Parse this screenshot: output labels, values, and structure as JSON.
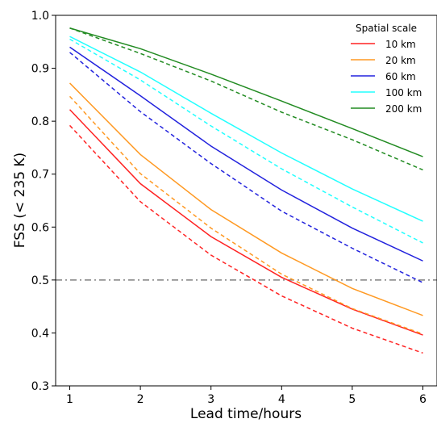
{
  "chart_data": {
    "type": "line",
    "title": "",
    "xlabel": "Lead time/hours",
    "ylabel": "FSS (< 235 K)",
    "x": [
      1,
      2,
      3,
      4,
      5,
      6
    ],
    "xlim": [
      0.8,
      6.2
    ],
    "ylim": [
      0.3,
      1.0
    ],
    "xticks": [
      "1",
      "2",
      "3",
      "4",
      "5",
      "6"
    ],
    "yticks": [
      "0.3",
      "0.4",
      "0.5",
      "0.6",
      "0.7",
      "0.8",
      "0.9",
      "1.0"
    ],
    "grid": false,
    "legend": {
      "title": "Spatial scale",
      "placement": "top-right"
    },
    "reference_line": {
      "y": 0.5,
      "style": "dash-dot",
      "color": "#7f7f7f"
    },
    "series": [
      {
        "name": "10 km",
        "color": "#ff2222",
        "style": "solid",
        "values": [
          0.822,
          0.682,
          0.582,
          0.505,
          0.445,
          0.396
        ]
      },
      {
        "name": "20 km",
        "color": "#ff9922",
        "style": "solid",
        "values": [
          0.872,
          0.737,
          0.633,
          0.551,
          0.484,
          0.433
        ]
      },
      {
        "name": "60 km",
        "color": "#2222dd",
        "style": "solid",
        "values": [
          0.94,
          0.848,
          0.753,
          0.67,
          0.598,
          0.536
        ]
      },
      {
        "name": "100 km",
        "color": "#22ffff",
        "style": "solid",
        "values": [
          0.96,
          0.893,
          0.815,
          0.74,
          0.672,
          0.611
        ]
      },
      {
        "name": "200 km",
        "color": "#228B22",
        "style": "solid",
        "values": [
          0.976,
          0.937,
          0.889,
          0.838,
          0.786,
          0.733
        ]
      },
      {
        "color": "#ff2222",
        "style": "dashed",
        "values": [
          0.792,
          0.648,
          0.547,
          0.47,
          0.409,
          0.362
        ]
      },
      {
        "color": "#ff9922",
        "style": "dashed",
        "values": [
          0.847,
          0.701,
          0.598,
          0.511,
          0.446,
          0.398
        ]
      },
      {
        "color": "#2222dd",
        "style": "dashed",
        "values": [
          0.93,
          0.818,
          0.72,
          0.63,
          0.56,
          0.495
        ]
      },
      {
        "color": "#22ffff",
        "style": "dashed",
        "values": [
          0.955,
          0.878,
          0.791,
          0.71,
          0.638,
          0.57
        ]
      },
      {
        "color": "#228B22",
        "style": "dashed",
        "values": [
          0.976,
          0.928,
          0.876,
          0.817,
          0.765,
          0.708
        ]
      }
    ]
  }
}
